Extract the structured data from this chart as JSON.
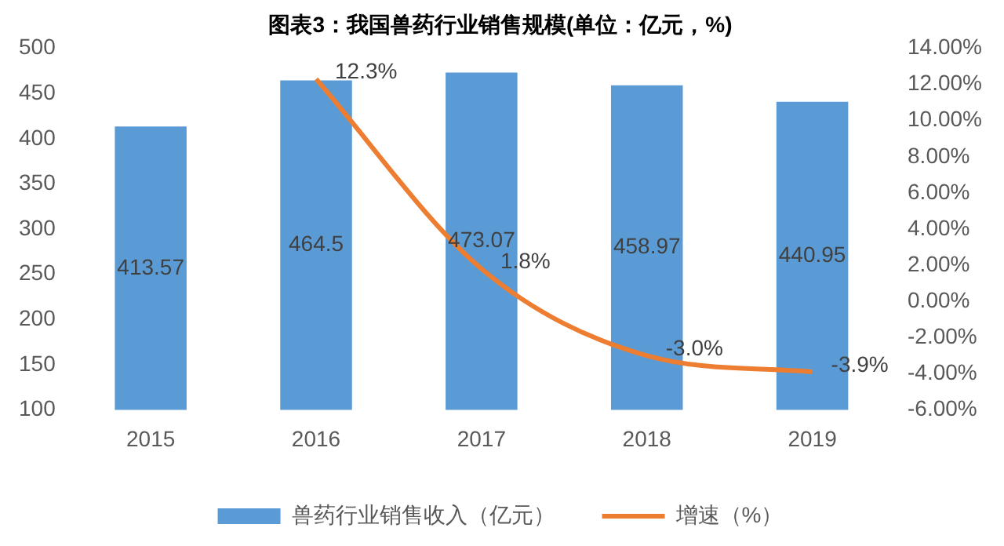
{
  "chart_data": {
    "type": "bar",
    "title": "图表3：我国兽药行业销售规模(单位：亿元，%)",
    "categories": [
      "2015",
      "2016",
      "2017",
      "2018",
      "2019"
    ],
    "series": [
      {
        "name": "兽药行业销售收入（亿元）",
        "color": "#5b9bd5",
        "values": [
          413.57,
          464.5,
          473.07,
          458.97,
          440.95
        ],
        "value_labels": [
          "413.57",
          "464.5",
          "473.07",
          "458.97",
          "440.95"
        ]
      },
      {
        "name": "增速（%）",
        "type": "line",
        "axis": "y2",
        "color": "#ed7d31",
        "values": [
          null,
          12.3,
          1.8,
          -3.0,
          -3.9
        ],
        "value_labels": [
          null,
          "12.3%",
          "1.8%",
          "-3.0%",
          "-3.9%"
        ]
      }
    ],
    "ylim": [
      100,
      500
    ],
    "yticks": [
      100,
      150,
      200,
      250,
      300,
      350,
      400,
      450,
      500
    ],
    "y2lim": [
      -6,
      14
    ],
    "y2ticks": [
      {
        "value": -6,
        "label": "-6.00%"
      },
      {
        "value": -4,
        "label": "-4.00%"
      },
      {
        "value": -2,
        "label": "-2.00%"
      },
      {
        "value": 0,
        "label": "0.00%"
      },
      {
        "value": 2,
        "label": "2.00%"
      },
      {
        "value": 4,
        "label": "4.00%"
      },
      {
        "value": 6,
        "label": "6.00%"
      },
      {
        "value": 8,
        "label": "8.00%"
      },
      {
        "value": 10,
        "label": "10.00%"
      },
      {
        "value": 12,
        "label": "12.00%"
      },
      {
        "value": 14,
        "label": "14.00%"
      }
    ],
    "grid": false,
    "legend": "bottom",
    "marker": "none",
    "line_style": "solid"
  }
}
